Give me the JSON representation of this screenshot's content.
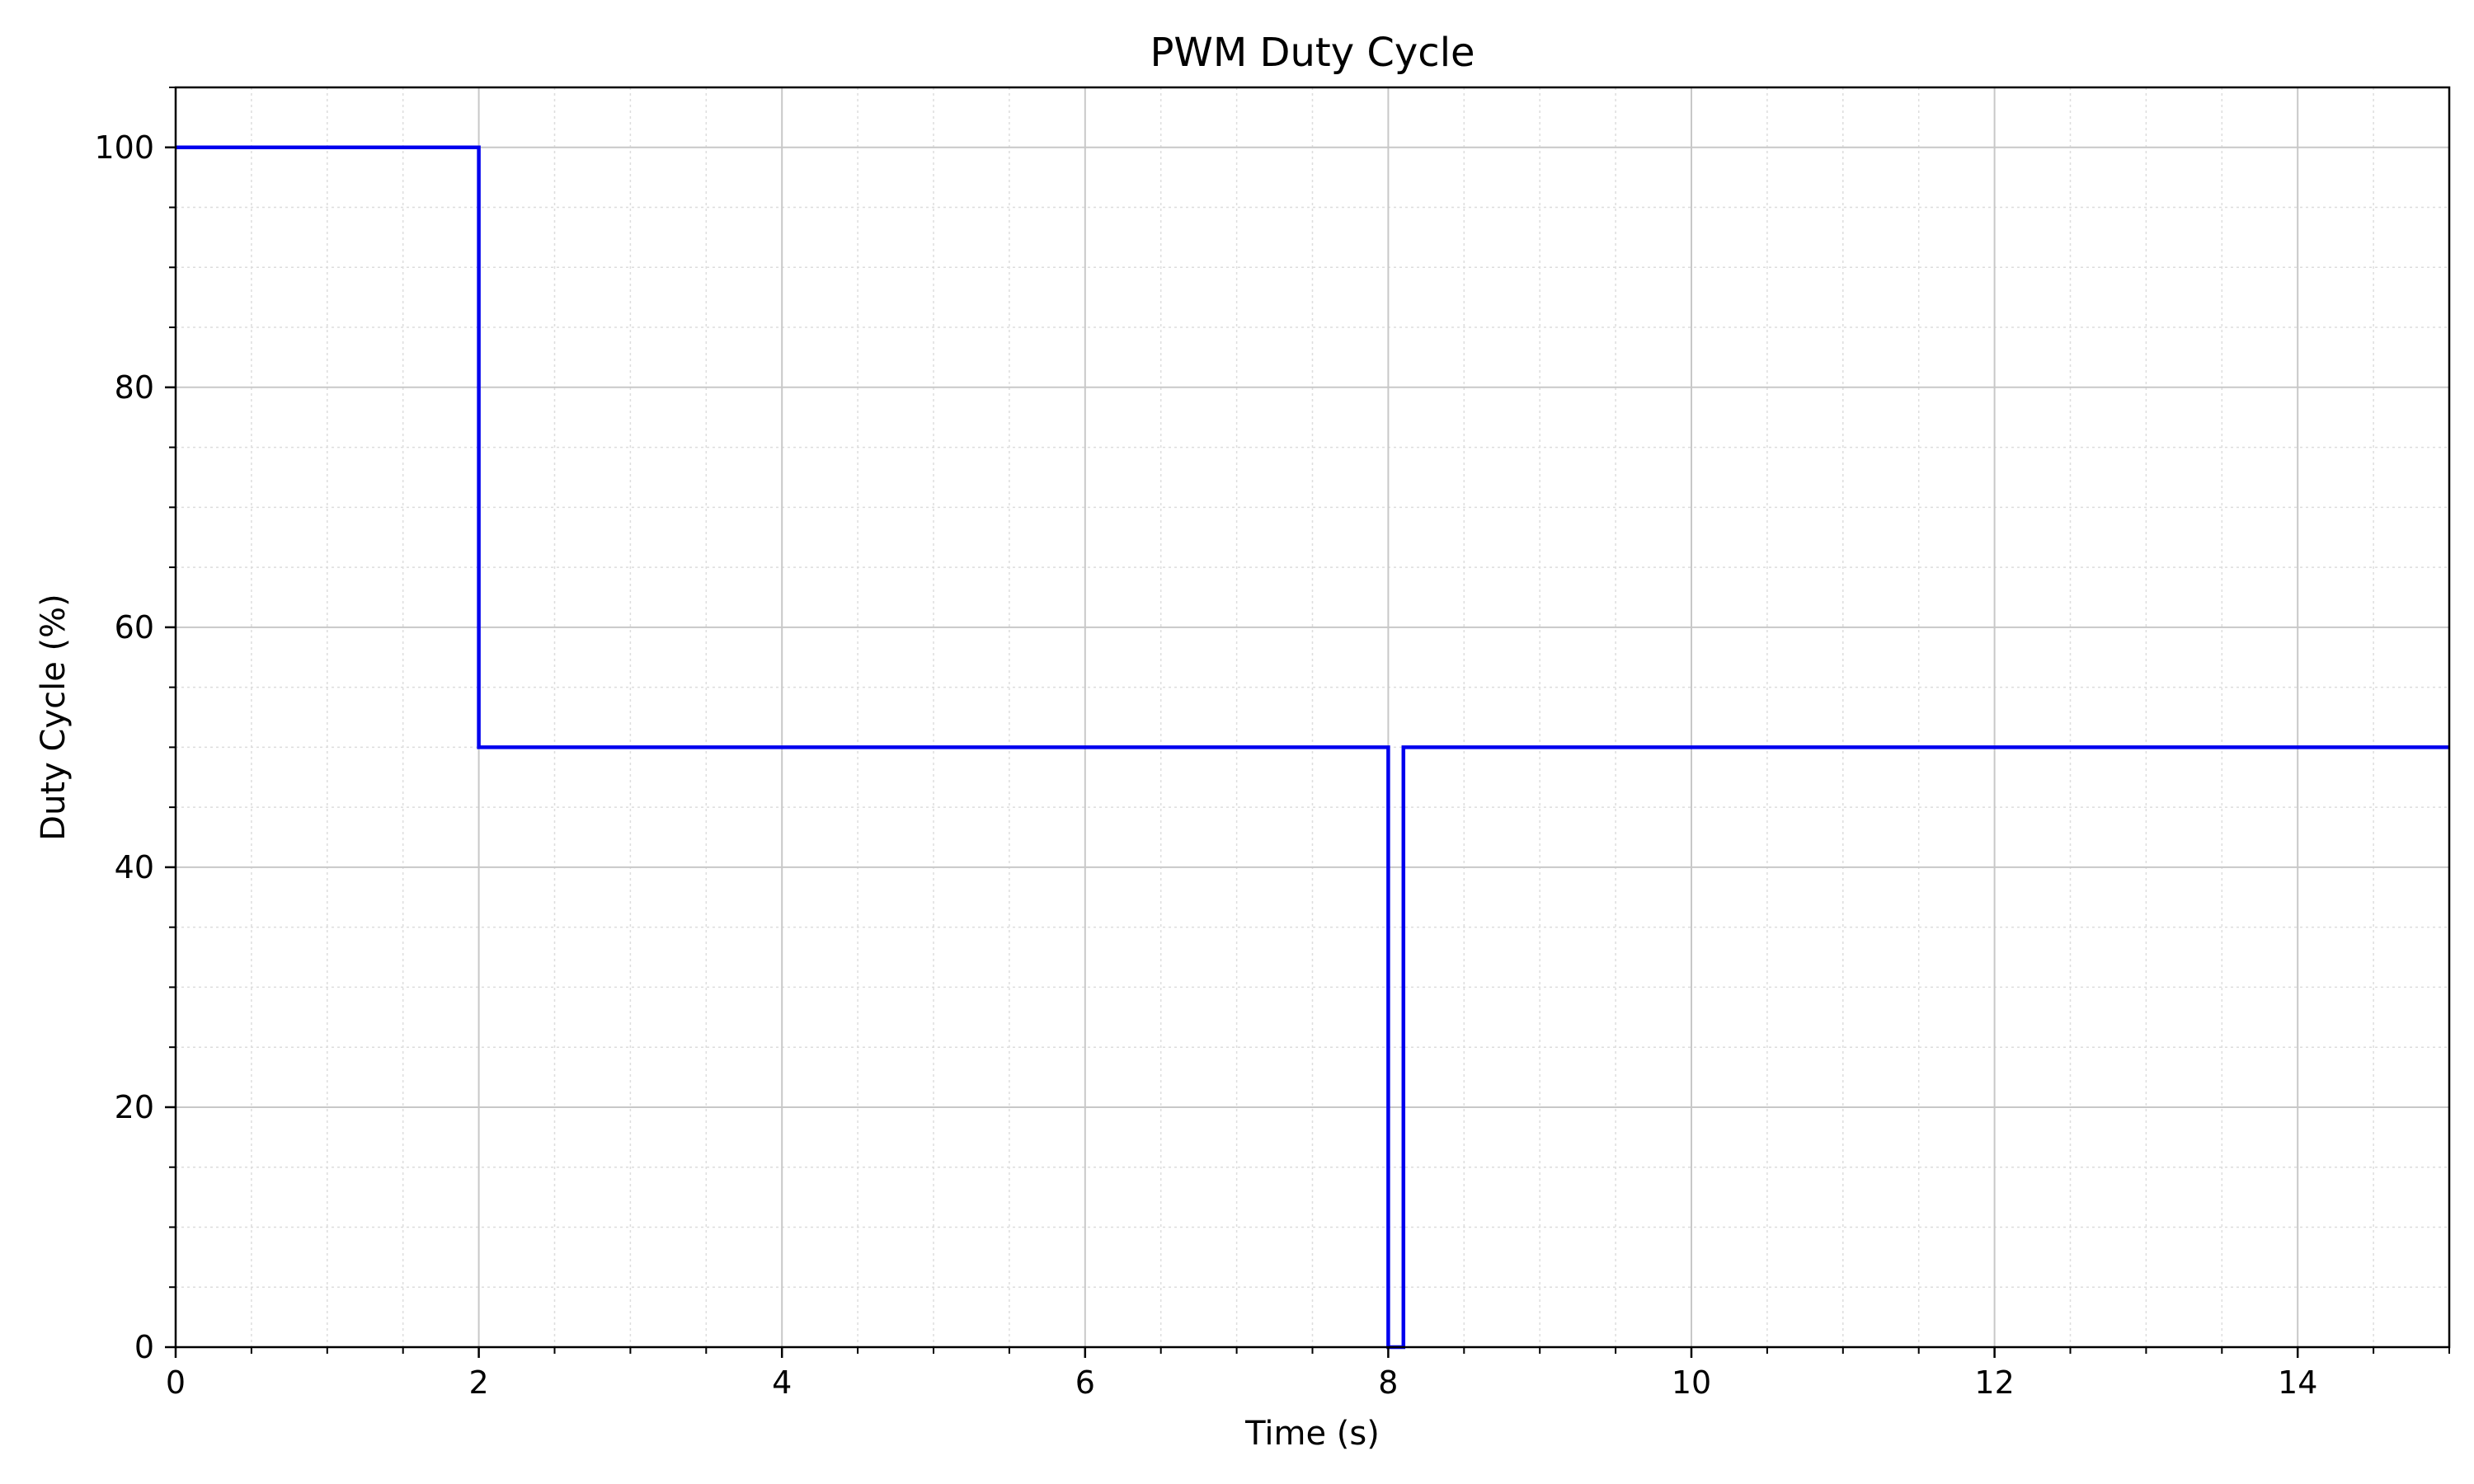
{
  "chart_data": {
    "type": "line",
    "title": "PWM Duty Cycle",
    "xlabel": "Time (s)",
    "ylabel": "Duty Cycle (%)",
    "xlim": [
      0,
      15
    ],
    "ylim": [
      0,
      105
    ],
    "x_ticks": [
      0,
      2,
      4,
      6,
      8,
      10,
      12,
      14
    ],
    "y_ticks": [
      0,
      20,
      40,
      60,
      80,
      100
    ],
    "x_minor_step": 0.5,
    "y_minor_step": 5,
    "grid": true,
    "minor_grid": true,
    "legend": "none",
    "step": true,
    "series": [
      {
        "color": "#0000ee",
        "x": [
          0,
          2.0,
          2.0,
          8.0,
          8.0,
          8.1,
          8.1,
          15
        ],
        "y": [
          100,
          100,
          50,
          50,
          0,
          0,
          50,
          50
        ]
      }
    ]
  }
}
